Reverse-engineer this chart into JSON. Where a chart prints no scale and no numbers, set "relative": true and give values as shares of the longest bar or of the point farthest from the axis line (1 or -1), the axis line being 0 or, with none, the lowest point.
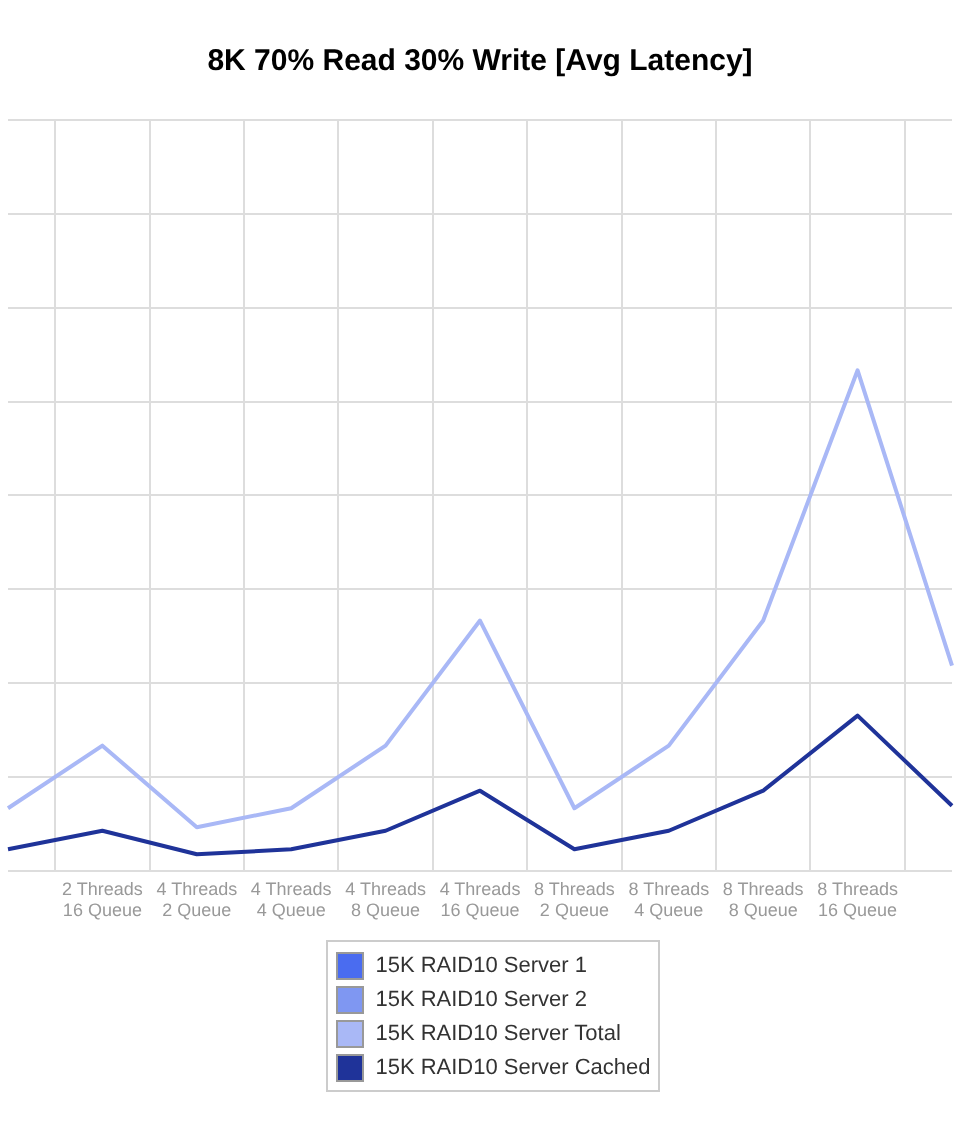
{
  "chart_data": {
    "type": "line",
    "title": "8K 70% Read 30% Write [Avg Latency]",
    "relative": true,
    "categories": [
      null,
      "2 Threads 16 Queue",
      "4 Threads 2 Queue",
      "4 Threads 4 Queue",
      "4 Threads 8 Queue",
      "4 Threads 16 Queue",
      "8 Threads 2 Queue",
      "8 Threads 4 Queue",
      "8 Threads 8 Queue",
      "8 Threads 16 Queue",
      null
    ],
    "series": [
      {
        "name": "15K RAID10 Server 1",
        "color": "#4a6cf0",
        "values": [
          null,
          null,
          null,
          null,
          null,
          null,
          null,
          null,
          null,
          null,
          null
        ]
      },
      {
        "name": "15K RAID10 Server 2",
        "color": "#7f97f2",
        "values": [
          null,
          null,
          null,
          null,
          null,
          null,
          null,
          null,
          null,
          null,
          null
        ]
      },
      {
        "name": "15K RAID10 Server Total",
        "color": "#a9b8f6",
        "values": [
          0.125,
          0.25,
          0.087,
          0.125,
          0.25,
          0.5,
          0.125,
          0.25,
          0.5,
          1,
          0.41
        ]
      },
      {
        "name": "15K RAID10 Server Cached",
        "color": "#1f3399",
        "values": [
          0.043,
          0.08,
          0.033,
          0.043,
          0.08,
          0.16,
          0.043,
          0.08,
          0.16,
          0.31,
          0.13
        ]
      }
    ],
    "grid": true,
    "legend": "bottom",
    "marker": "none",
    "line_style": "solid"
  }
}
